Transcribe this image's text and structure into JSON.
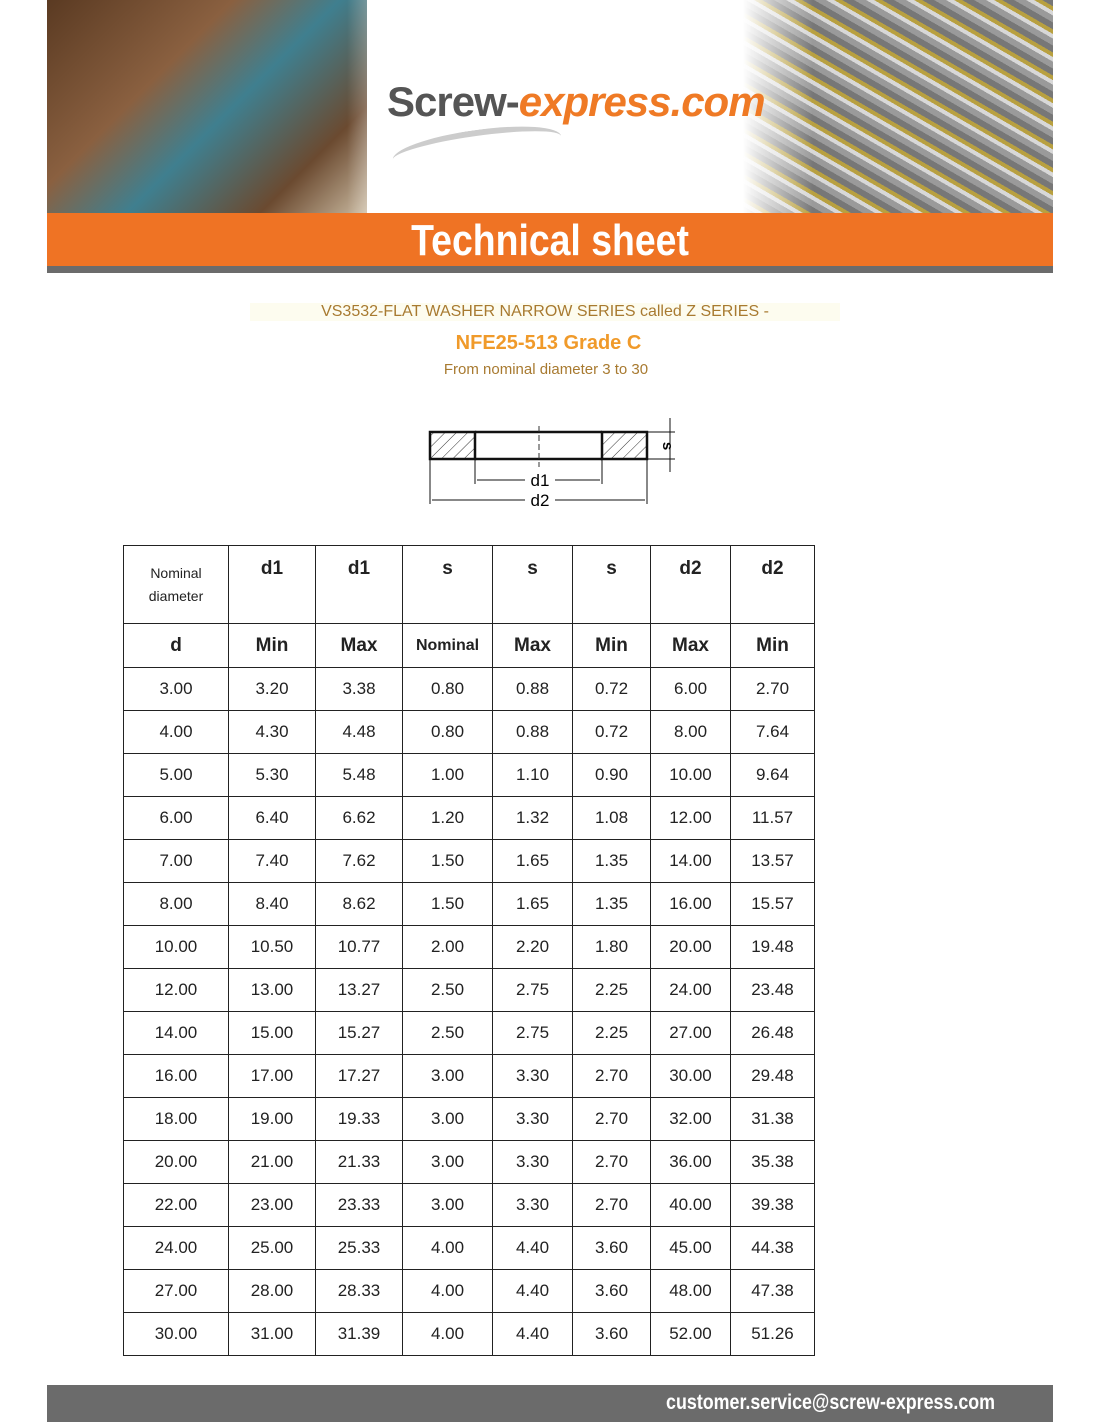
{
  "header": {
    "logo_main": "Screw-",
    "logo_accent": "express.com",
    "title": "Technical sheet",
    "colors": {
      "orange": "#ef7324",
      "gray": "#6b6b6b"
    }
  },
  "product": {
    "title": "VS3532-FLAT WASHER NARROW SERIES called Z SERIES -",
    "standard": "NFE25-513 Grade C",
    "range": "From nominal diameter 3 to 30"
  },
  "diagram": {
    "label_d1": "d1",
    "label_d2": "d2",
    "label_s": "s"
  },
  "table": {
    "header_top": [
      "Nominal diameter",
      "d1",
      "d1",
      "s",
      "s",
      "s",
      "d2",
      "d2"
    ],
    "header_sub": [
      "d",
      "Min",
      "Max",
      "Nominal",
      "Max",
      "Min",
      "Max",
      "Min"
    ],
    "rows": [
      [
        "3.00",
        "3.20",
        "3.38",
        "0.80",
        "0.88",
        "0.72",
        "6.00",
        "2.70"
      ],
      [
        "4.00",
        "4.30",
        "4.48",
        "0.80",
        "0.88",
        "0.72",
        "8.00",
        "7.64"
      ],
      [
        "5.00",
        "5.30",
        "5.48",
        "1.00",
        "1.10",
        "0.90",
        "10.00",
        "9.64"
      ],
      [
        "6.00",
        "6.40",
        "6.62",
        "1.20",
        "1.32",
        "1.08",
        "12.00",
        "11.57"
      ],
      [
        "7.00",
        "7.40",
        "7.62",
        "1.50",
        "1.65",
        "1.35",
        "14.00",
        "13.57"
      ],
      [
        "8.00",
        "8.40",
        "8.62",
        "1.50",
        "1.65",
        "1.35",
        "16.00",
        "15.57"
      ],
      [
        "10.00",
        "10.50",
        "10.77",
        "2.00",
        "2.20",
        "1.80",
        "20.00",
        "19.48"
      ],
      [
        "12.00",
        "13.00",
        "13.27",
        "2.50",
        "2.75",
        "2.25",
        "24.00",
        "23.48"
      ],
      [
        "14.00",
        "15.00",
        "15.27",
        "2.50",
        "2.75",
        "2.25",
        "27.00",
        "26.48"
      ],
      [
        "16.00",
        "17.00",
        "17.27",
        "3.00",
        "3.30",
        "2.70",
        "30.00",
        "29.48"
      ],
      [
        "18.00",
        "19.00",
        "19.33",
        "3.00",
        "3.30",
        "2.70",
        "32.00",
        "31.38"
      ],
      [
        "20.00",
        "21.00",
        "21.33",
        "3.00",
        "3.30",
        "2.70",
        "36.00",
        "35.38"
      ],
      [
        "22.00",
        "23.00",
        "23.33",
        "3.00",
        "3.30",
        "2.70",
        "40.00",
        "39.38"
      ],
      [
        "24.00",
        "25.00",
        "25.33",
        "4.00",
        "4.40",
        "3.60",
        "45.00",
        "44.38"
      ],
      [
        "27.00",
        "28.00",
        "28.33",
        "4.00",
        "4.40",
        "3.60",
        "48.00",
        "47.38"
      ],
      [
        "30.00",
        "31.00",
        "31.39",
        "4.00",
        "4.40",
        "3.60",
        "52.00",
        "51.26"
      ]
    ]
  },
  "footer": {
    "email": "customer.service@screw-express.com"
  }
}
